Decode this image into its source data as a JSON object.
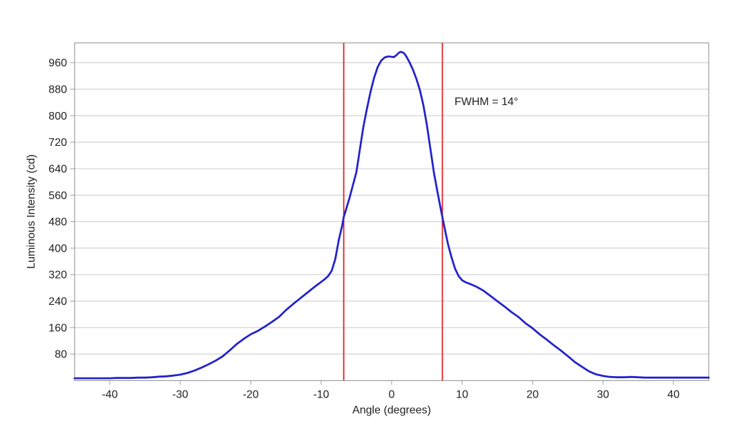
{
  "chart_data": {
    "type": "line",
    "title": "",
    "xlabel": "Angle (degrees)",
    "ylabel": "Luminous Intensity (cd)",
    "xlim": [
      -45,
      45
    ],
    "ylim": [
      0,
      1020
    ],
    "x_ticks": [
      -40,
      -30,
      -20,
      -10,
      0,
      10,
      20,
      30,
      40
    ],
    "y_ticks": [
      80,
      160,
      240,
      320,
      400,
      480,
      560,
      640,
      720,
      800,
      880,
      960
    ],
    "grid": "horizontal-only",
    "legend": "none",
    "annotation": {
      "text": "FWHM = 14°",
      "x_deg": 9,
      "y_cd": 840
    },
    "fwhm_lines_deg": [
      -6.8,
      7.2
    ],
    "peak_cd": 993,
    "peak_angle_deg": 1.3,
    "colors": {
      "line": "#2222CC",
      "fwhm_line": "#E02020",
      "grid": "#C9C9C9",
      "axis": "#9C9C9C",
      "text": "#212121",
      "background": "#FFFFFF"
    },
    "series": [
      {
        "name": "luminous-intensity-curve",
        "points": [
          [
            -45,
            7
          ],
          [
            -44,
            7
          ],
          [
            -43,
            7
          ],
          [
            -42,
            7
          ],
          [
            -41,
            7
          ],
          [
            -40,
            7
          ],
          [
            -39,
            8
          ],
          [
            -38,
            8
          ],
          [
            -37,
            8
          ],
          [
            -36,
            9
          ],
          [
            -35,
            9
          ],
          [
            -34,
            10
          ],
          [
            -33,
            12
          ],
          [
            -32,
            13
          ],
          [
            -31,
            15
          ],
          [
            -30,
            18
          ],
          [
            -29,
            23
          ],
          [
            -28,
            30
          ],
          [
            -27,
            39
          ],
          [
            -26,
            49
          ],
          [
            -25,
            60
          ],
          [
            -24,
            73
          ],
          [
            -23,
            91
          ],
          [
            -22,
            110
          ],
          [
            -21,
            126
          ],
          [
            -20,
            140
          ],
          [
            -19,
            150
          ],
          [
            -18,
            163
          ],
          [
            -17,
            177
          ],
          [
            -16,
            192
          ],
          [
            -15,
            213
          ],
          [
            -14,
            231
          ],
          [
            -13,
            248
          ],
          [
            -12,
            265
          ],
          [
            -11,
            282
          ],
          [
            -10,
            298
          ],
          [
            -9.5,
            306
          ],
          [
            -9,
            316
          ],
          [
            -8.5,
            332
          ],
          [
            -8,
            367
          ],
          [
            -7.5,
            425
          ],
          [
            -7,
            470
          ],
          [
            -6.8,
            494
          ],
          [
            -6.5,
            515
          ],
          [
            -6,
            550
          ],
          [
            -5.5,
            590
          ],
          [
            -5,
            630
          ],
          [
            -4.5,
            700
          ],
          [
            -4,
            768
          ],
          [
            -3.5,
            822
          ],
          [
            -3,
            872
          ],
          [
            -2.5,
            914
          ],
          [
            -2,
            946
          ],
          [
            -1.5,
            966
          ],
          [
            -1,
            976
          ],
          [
            -0.5,
            979
          ],
          [
            0,
            978
          ],
          [
            0.3,
            977
          ],
          [
            0.7,
            983
          ],
          [
            1,
            990
          ],
          [
            1.3,
            993
          ],
          [
            1.7,
            990
          ],
          [
            2,
            982
          ],
          [
            2.5,
            963
          ],
          [
            3,
            940
          ],
          [
            3.5,
            912
          ],
          [
            4,
            878
          ],
          [
            4.5,
            832
          ],
          [
            5,
            772
          ],
          [
            5.5,
            700
          ],
          [
            6,
            628
          ],
          [
            6.5,
            570
          ],
          [
            7,
            515
          ],
          [
            7.2,
            494
          ],
          [
            7.5,
            462
          ],
          [
            8,
            412
          ],
          [
            8.5,
            372
          ],
          [
            9,
            338
          ],
          [
            9.5,
            316
          ],
          [
            10,
            303
          ],
          [
            10.5,
            297
          ],
          [
            11,
            293
          ],
          [
            12,
            284
          ],
          [
            13,
            272
          ],
          [
            14,
            256
          ],
          [
            15,
            240
          ],
          [
            16,
            224
          ],
          [
            17,
            207
          ],
          [
            18,
            192
          ],
          [
            19,
            173
          ],
          [
            20,
            158
          ],
          [
            21,
            140
          ],
          [
            22,
            124
          ],
          [
            23,
            107
          ],
          [
            24,
            91
          ],
          [
            25,
            74
          ],
          [
            26,
            56
          ],
          [
            27,
            42
          ],
          [
            28,
            28
          ],
          [
            29,
            19
          ],
          [
            30,
            14
          ],
          [
            31,
            11
          ],
          [
            32,
            10
          ],
          [
            33,
            10
          ],
          [
            34,
            11
          ],
          [
            35,
            10
          ],
          [
            36,
            9
          ],
          [
            37,
            9
          ],
          [
            38,
            9
          ],
          [
            39,
            9
          ],
          [
            40,
            9
          ],
          [
            41,
            9
          ],
          [
            42,
            9
          ],
          [
            43,
            9
          ],
          [
            44,
            9
          ],
          [
            45,
            9
          ]
        ]
      }
    ]
  }
}
